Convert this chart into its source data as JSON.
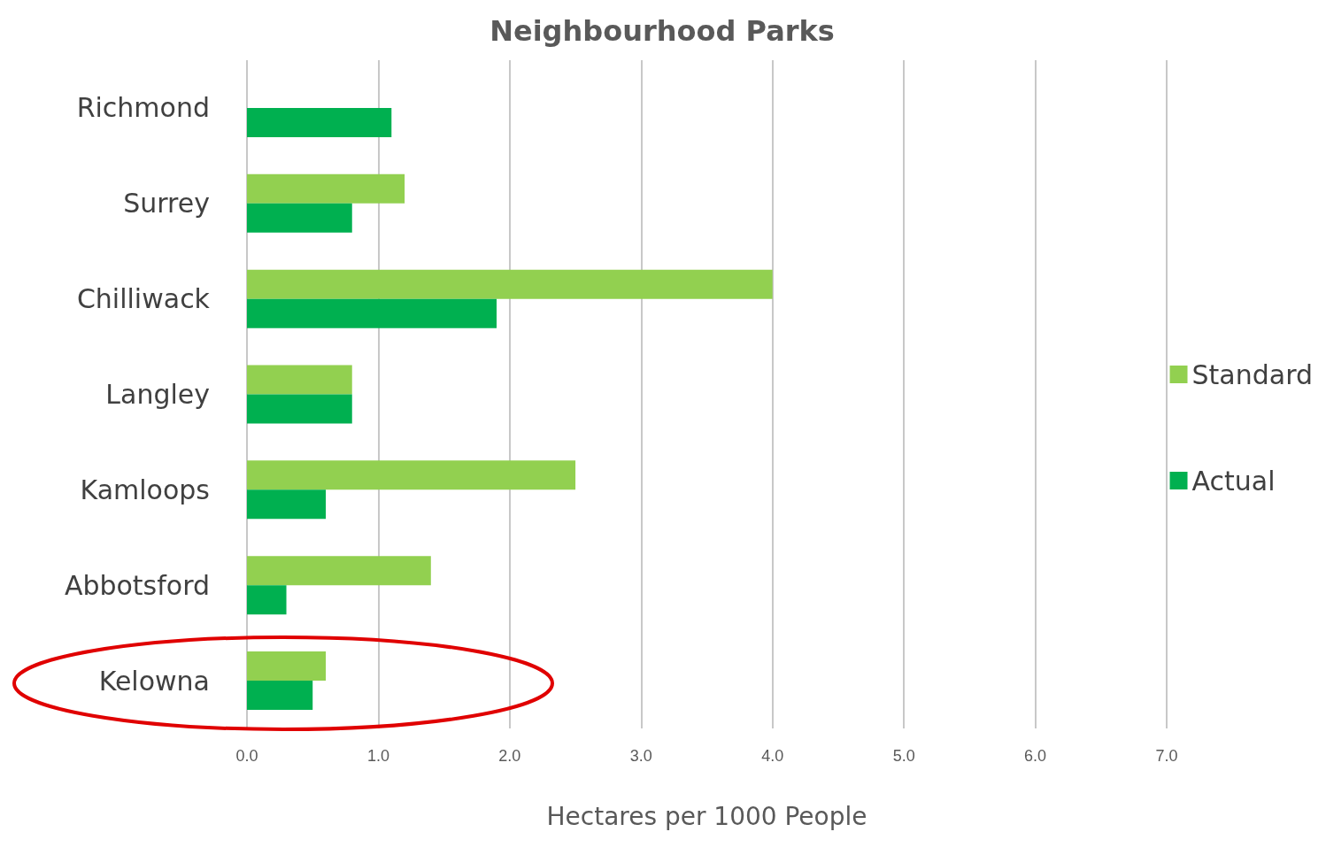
{
  "chart_data": {
    "type": "bar",
    "orientation": "horizontal",
    "title": "Neighbourhood Parks",
    "xlabel": "Hectares per 1000 People",
    "categories": [
      "Richmond",
      "Surrey",
      "Chilliwack",
      "Langley",
      "Kamloops",
      "Abbotsford",
      "Kelowna"
    ],
    "series": [
      {
        "name": "Standard",
        "color": "#92d050",
        "values": [
          null,
          1.2,
          4.0,
          0.8,
          2.5,
          1.4,
          0.6
        ]
      },
      {
        "name": "Actual",
        "color": "#00b050",
        "values": [
          1.1,
          0.8,
          1.9,
          0.8,
          0.6,
          0.3,
          0.5
        ]
      }
    ],
    "xlim": [
      0,
      7
    ],
    "xticks": [
      {
        "value": 0,
        "label": "0.0"
      },
      {
        "value": 1,
        "label": "1.0"
      },
      {
        "value": 2,
        "label": "2.0"
      },
      {
        "value": 3,
        "label": "3.0"
      },
      {
        "value": 4,
        "label": "4.0"
      },
      {
        "value": 5,
        "label": "5.0"
      },
      {
        "value": 6,
        "label": "6.0"
      },
      {
        "value": 7,
        "label": "7.0"
      }
    ],
    "grid": "x",
    "legend": "right"
  }
}
